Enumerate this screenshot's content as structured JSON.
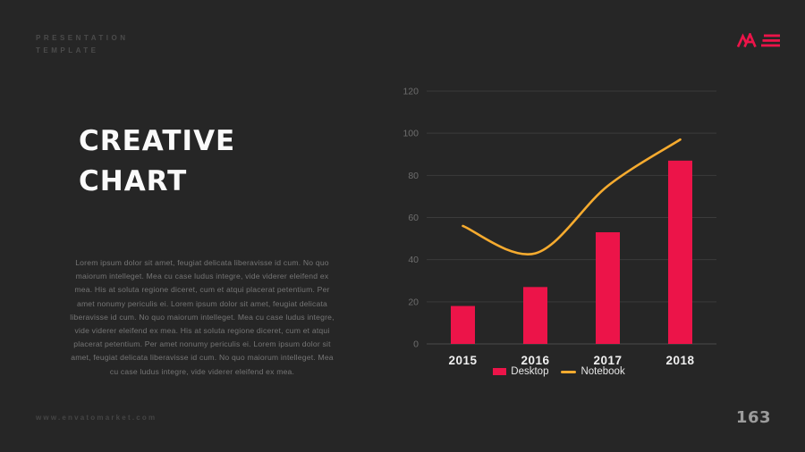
{
  "slide": {
    "eyebrow_line1": "PRESENTATION",
    "eyebrow_line2": "TEMPLATE",
    "title_line1": "CREATIVE",
    "title_line2": "CHART",
    "body_text": "Lorem ipsum dolor sit amet, feugiat delicata liberavisse id cum. No quo maiorum intelleget. Mea cu case ludus integre, vide viderer eleifend ex mea. His at soluta regione diceret, cum et atqui placerat petentium. Per amet nonumy periculis ei. Lorem ipsum dolor sit amet, feugiat delicata liberavisse id cum. No quo maiorum intelleget. Mea cu case ludus integre, vide viderer eleifend ex mea. His at soluta regione diceret, cum et atqui placerat petentium. Per amet nonumy periculis ei. Lorem ipsum dolor sit amet, feugiat delicata liberavisse id cum. No quo maiorum intelleget. Mea cu case ludus integre, vide viderer eleifend ex mea.",
    "footer_url": "www.envatomarket.com",
    "page_number": "163",
    "logo_name": "ME-logo"
  },
  "colors": {
    "background": "#262626",
    "accent_red": "#EC1449",
    "accent_yellow": "#F6AB2F",
    "grid_line": "#3B3B3B",
    "axis_line": "#4B4B4B",
    "tick_label": "#6E6E6E",
    "x_label": "#F0F0F0",
    "legend_label": "#E6E6E6",
    "title_text": "#FAFAFA",
    "body_text": "#757575",
    "faint_text": "#4B4B4B",
    "page_number": "#9C9C9C"
  },
  "chart_data": {
    "type": "bar",
    "subtype": "combo-bar-line",
    "categories": [
      "2015",
      "2016",
      "2017",
      "2018"
    ],
    "series": [
      {
        "name": "Desktop",
        "type": "bar",
        "color": "#EC1449",
        "values": [
          18,
          27,
          53,
          87
        ]
      },
      {
        "name": "Notebook",
        "type": "line",
        "color": "#F6AB2F",
        "values": [
          56,
          43,
          75,
          97
        ]
      }
    ],
    "title": "",
    "xlabel": "",
    "ylabel": "",
    "ylim": [
      0,
      120
    ],
    "ytick_step": 20,
    "yticks": [
      0,
      20,
      40,
      60,
      80,
      100,
      120
    ],
    "grid": true,
    "legend_position": "bottom-center"
  }
}
